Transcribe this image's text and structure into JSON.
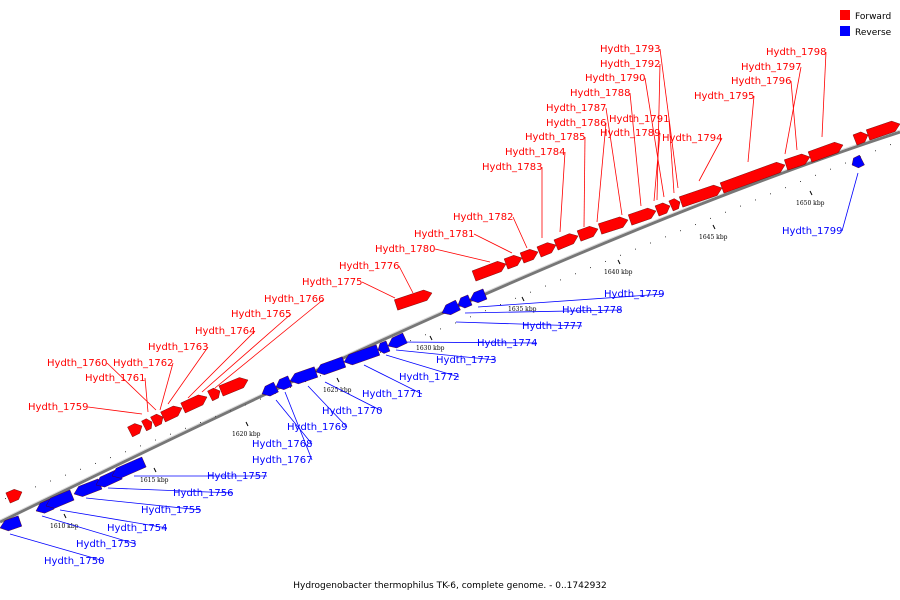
{
  "legend": [
    {
      "label": "Forward",
      "color": "#ff0000"
    },
    {
      "label": "Reverse",
      "color": "#0000ff"
    }
  ],
  "caption": "Hydrogenobacter thermophilus TK-6, complete genome. - 0..1742932",
  "colors": {
    "forward": "#ff0000",
    "reverse": "#0000ff",
    "backbone": "#999999"
  },
  "ticks": [
    "1610 kbp",
    "1615 kbp",
    "1620 kbp",
    "1625 kbp",
    "1630 kbp",
    "1635 kbp",
    "1640 kbp",
    "1645 kbp",
    "1650 kbp"
  ],
  "forward_genes": [
    "Hydth_1759",
    "Hydth_1760",
    "Hydth_1761",
    "Hydth_1762",
    "Hydth_1763",
    "Hydth_1764",
    "Hydth_1765",
    "Hydth_1766",
    "Hydth_1775",
    "Hydth_1776",
    "Hydth_1780",
    "Hydth_1781",
    "Hydth_1782",
    "Hydth_1783",
    "Hydth_1784",
    "Hydth_1785",
    "Hydth_1786",
    "Hydth_1787",
    "Hydth_1788",
    "Hydth_1789",
    "Hydth_1790",
    "Hydth_1791",
    "Hydth_1792",
    "Hydth_1793",
    "Hydth_1794",
    "Hydth_1795",
    "Hydth_1796",
    "Hydth_1797",
    "Hydth_1798"
  ],
  "reverse_genes": [
    "Hydth_1750",
    "Hydth_1753",
    "Hydth_1754",
    "Hydth_1755",
    "Hydth_1756",
    "Hydth_1757",
    "Hydth_1767",
    "Hydth_1768",
    "Hydth_1769",
    "Hydth_1770",
    "Hydth_1771",
    "Hydth_1772",
    "Hydth_1773",
    "Hydth_1774",
    "Hydth_1777",
    "Hydth_1778",
    "Hydth_1779",
    "Hydth_1799"
  ]
}
